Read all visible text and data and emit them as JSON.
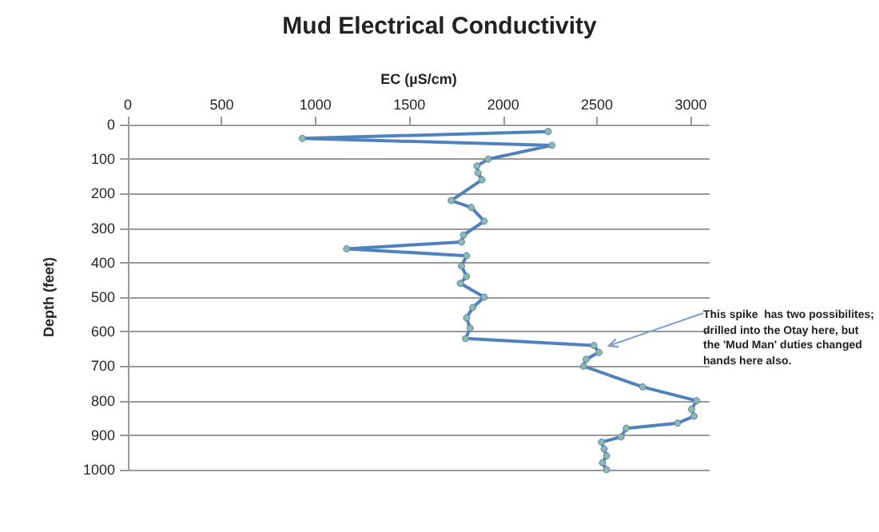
{
  "chart_data": {
    "type": "line",
    "title": "Mud Electrical Conductivity",
    "xlabel": "EC (µS/cm)",
    "ylabel": "Depth (feet)",
    "x": [
      2240,
      930,
      2260,
      1920,
      1860,
      1866,
      1887,
      1723,
      1830,
      1899,
      1789,
      1778,
      1166,
      1805,
      1778,
      1805,
      1772,
      1899,
      1838,
      1805,
      1824,
      1800,
      2483,
      2510,
      2442,
      2428,
      2743,
      3031,
      3004,
      3017,
      2930,
      2656,
      2628,
      2524,
      2538,
      2551,
      2529,
      2551
    ],
    "values": [
      20,
      40,
      60,
      100,
      120,
      140,
      160,
      220,
      240,
      280,
      320,
      340,
      360,
      380,
      410,
      440,
      460,
      500,
      530,
      560,
      590,
      620,
      640,
      660,
      680,
      700,
      760,
      800,
      825,
      845,
      865,
      880,
      905,
      920,
      940,
      960,
      980,
      1000
    ],
    "color": "#4f81bd",
    "marker": "circle",
    "grid": "y",
    "xlim": [
      0,
      3100
    ],
    "xticks": [
      0,
      500,
      1000,
      1500,
      2000,
      2500,
      3000
    ],
    "ylim": [
      1000,
      0
    ],
    "yticks": [
      0,
      100,
      200,
      300,
      400,
      500,
      600,
      700,
      800,
      900,
      1000
    ],
    "annotations": [
      {
        "text": "This spike  has two possibilites; drilled into the Otay here, but the 'Mud Man' duties changed hands here also.",
        "x": 2530,
        "y": 650
      }
    ]
  }
}
